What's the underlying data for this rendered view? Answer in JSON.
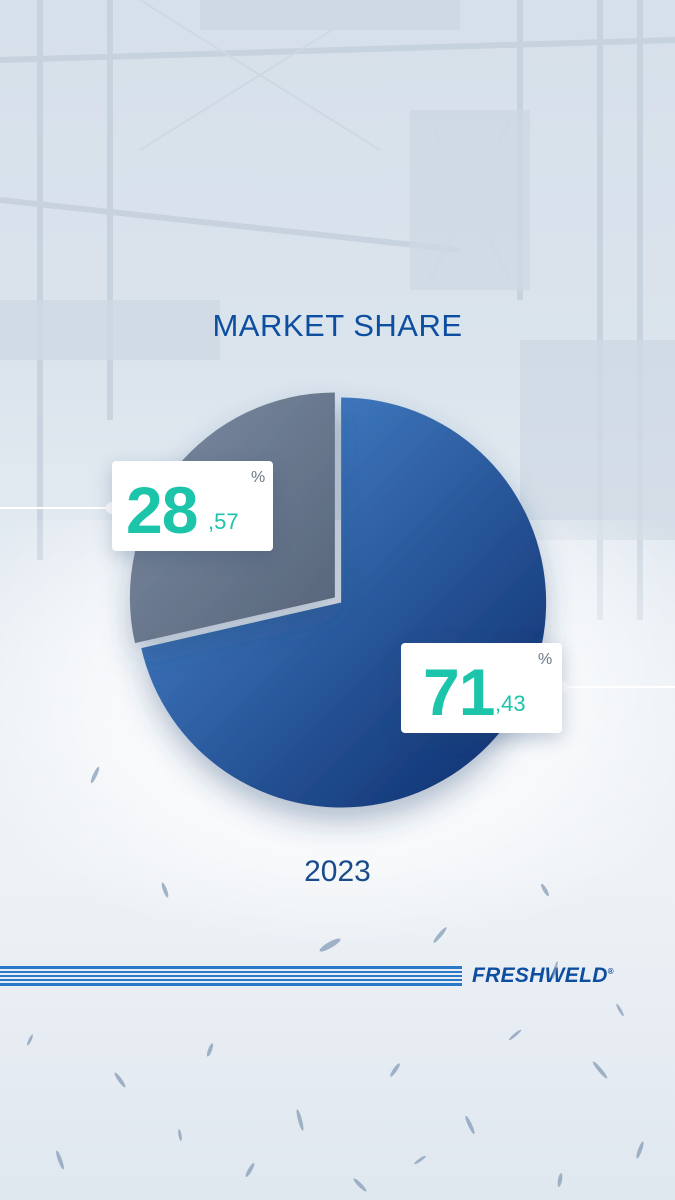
{
  "title": "MARKET SHARE",
  "year": "2023",
  "brand": "FRESHWELD",
  "brand_mark": "®",
  "colors": {
    "title": "#0d4ea0",
    "accent_number": "#1cc4a9",
    "slice_large_start": "#4f8fd6",
    "slice_large_end": "#0a2a6a",
    "slice_small_start": "#7d8ca3",
    "slice_small_end": "#566479"
  },
  "chart_data": {
    "type": "pie",
    "title": "MARKET SHARE",
    "subtitle": "2023",
    "slices": [
      {
        "value": 71.43,
        "label_main": "71",
        "label_decimal": ",43",
        "unit": "%"
      },
      {
        "value": 28.57,
        "label_main": "28",
        "label_decimal": ",57",
        "unit": "%"
      }
    ],
    "legend": "none"
  }
}
